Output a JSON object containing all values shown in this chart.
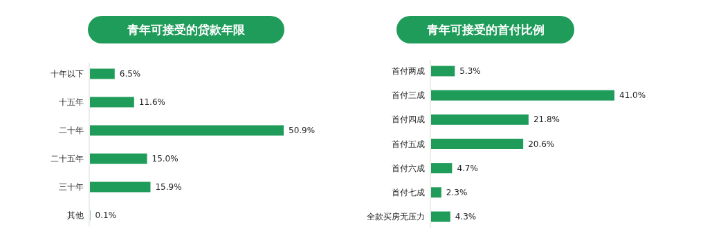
{
  "chart_data": [
    {
      "type": "bar",
      "orientation": "horizontal",
      "title": "青年可接受的贷款年限",
      "categories": [
        "十年以下",
        "十五年",
        "二十年",
        "二十五年",
        "三十年",
        "其他"
      ],
      "values": [
        6.5,
        11.6,
        50.9,
        15.0,
        15.9,
        0.1
      ],
      "value_labels": [
        "6.5%",
        "11.6%",
        "50.9%",
        "15.0%",
        "15.9%",
        "0.1%"
      ],
      "colors": [
        "#1f9c5a",
        "#1f9c5a",
        "#1f9c5a",
        "#1f9c5a",
        "#1f9c5a",
        "#4a8fa0"
      ]
    },
    {
      "type": "bar",
      "orientation": "horizontal",
      "title": "青年可接受的首付比例",
      "categories": [
        "首付两成",
        "首付三成",
        "首付四成",
        "首付五成",
        "首付六成",
        "首付七成",
        "全款买房无压力"
      ],
      "values": [
        5.3,
        41.0,
        21.8,
        20.6,
        4.7,
        2.3,
        4.3
      ],
      "value_labels": [
        "5.3%",
        "41.0%",
        "21.8%",
        "20.6%",
        "4.7%",
        "2.3%",
        "4.3%"
      ],
      "colors": [
        "#1f9c5a",
        "#1f9c5a",
        "#1f9c5a",
        "#1f9c5a",
        "#1f9c5a",
        "#1f9c5a",
        "#1f9c5a"
      ]
    }
  ]
}
